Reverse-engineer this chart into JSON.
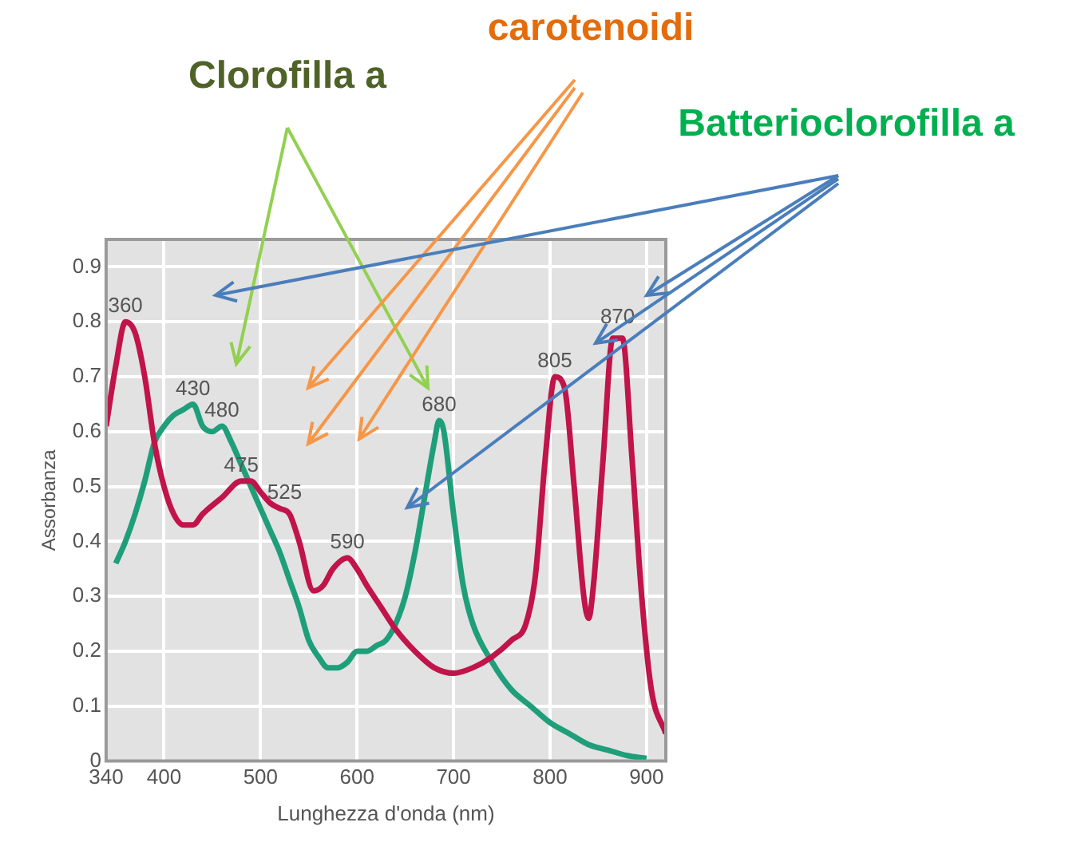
{
  "chart_data": {
    "type": "line",
    "xlabel": "Lunghezza d'onda (nm)",
    "ylabel": "Assorbanza",
    "xlim": [
      340,
      920
    ],
    "xticks": [
      340,
      400,
      500,
      600,
      700,
      800,
      900
    ],
    "ylim": [
      0,
      0.95
    ],
    "yticks": [
      0,
      0.1,
      0.2,
      0.3,
      0.4,
      0.5,
      0.6,
      0.7,
      0.8,
      0.9
    ],
    "grid": true,
    "legend": false,
    "marker": "none",
    "line_style": "solid",
    "series": [
      {
        "color": "#c0144a",
        "x": [
          340,
          350,
          360,
          370,
          380,
          390,
          400,
          410,
          420,
          430,
          440,
          460,
          480,
          490,
          500,
          510,
          520,
          530,
          540,
          555,
          565,
          575,
          590,
          600,
          610,
          625,
          640,
          660,
          680,
          700,
          720,
          740,
          760,
          775,
          785,
          795,
          805,
          815,
          825,
          835,
          840,
          845,
          855,
          865,
          875,
          885,
          895,
          905,
          920
        ],
        "values": [
          0.61,
          0.72,
          0.8,
          0.78,
          0.7,
          0.58,
          0.5,
          0.45,
          0.43,
          0.43,
          0.45,
          0.48,
          0.51,
          0.51,
          0.49,
          0.47,
          0.46,
          0.45,
          0.4,
          0.31,
          0.32,
          0.35,
          0.37,
          0.35,
          0.32,
          0.28,
          0.24,
          0.2,
          0.17,
          0.16,
          0.17,
          0.19,
          0.22,
          0.25,
          0.34,
          0.55,
          0.7,
          0.68,
          0.5,
          0.3,
          0.26,
          0.32,
          0.55,
          0.77,
          0.77,
          0.55,
          0.3,
          0.13,
          0.05
        ]
      },
      {
        "color": "#1f9e7a",
        "x": [
          350,
          360,
          370,
          380,
          390,
          400,
          410,
          420,
          430,
          440,
          450,
          460,
          470,
          480,
          490,
          500,
          510,
          520,
          530,
          540,
          550,
          560,
          570,
          580,
          590,
          600,
          610,
          620,
          630,
          640,
          650,
          660,
          670,
          680,
          685,
          690,
          700,
          710,
          720,
          740,
          760,
          780,
          800,
          820,
          840,
          860,
          880,
          900
        ],
        "values": [
          0.36,
          0.4,
          0.45,
          0.51,
          0.58,
          0.61,
          0.63,
          0.64,
          0.65,
          0.61,
          0.6,
          0.61,
          0.58,
          0.54,
          0.5,
          0.46,
          0.42,
          0.38,
          0.33,
          0.28,
          0.22,
          0.19,
          0.17,
          0.17,
          0.18,
          0.2,
          0.2,
          0.21,
          0.22,
          0.25,
          0.3,
          0.38,
          0.48,
          0.58,
          0.62,
          0.6,
          0.45,
          0.32,
          0.25,
          0.18,
          0.13,
          0.1,
          0.07,
          0.05,
          0.03,
          0.02,
          0.01,
          0.005
        ]
      }
    ],
    "annotations": [
      "Clorofilla a",
      "carotenoidi",
      "Batterioclorofilla a",
      {
        "text": "360",
        "x": 360,
        "y": 0.8
      },
      {
        "text": "430",
        "x": 430,
        "y": 0.65
      },
      {
        "text": "480",
        "x": 460,
        "y": 0.61
      },
      {
        "text": "475",
        "x": 480,
        "y": 0.51
      },
      {
        "text": "525",
        "x": 525,
        "y": 0.46
      },
      {
        "text": "590",
        "x": 590,
        "y": 0.37
      },
      {
        "text": "680",
        "x": 685,
        "y": 0.62
      },
      {
        "text": "805",
        "x": 805,
        "y": 0.7
      },
      {
        "text": "870",
        "x": 870,
        "y": 0.78
      }
    ]
  }
}
